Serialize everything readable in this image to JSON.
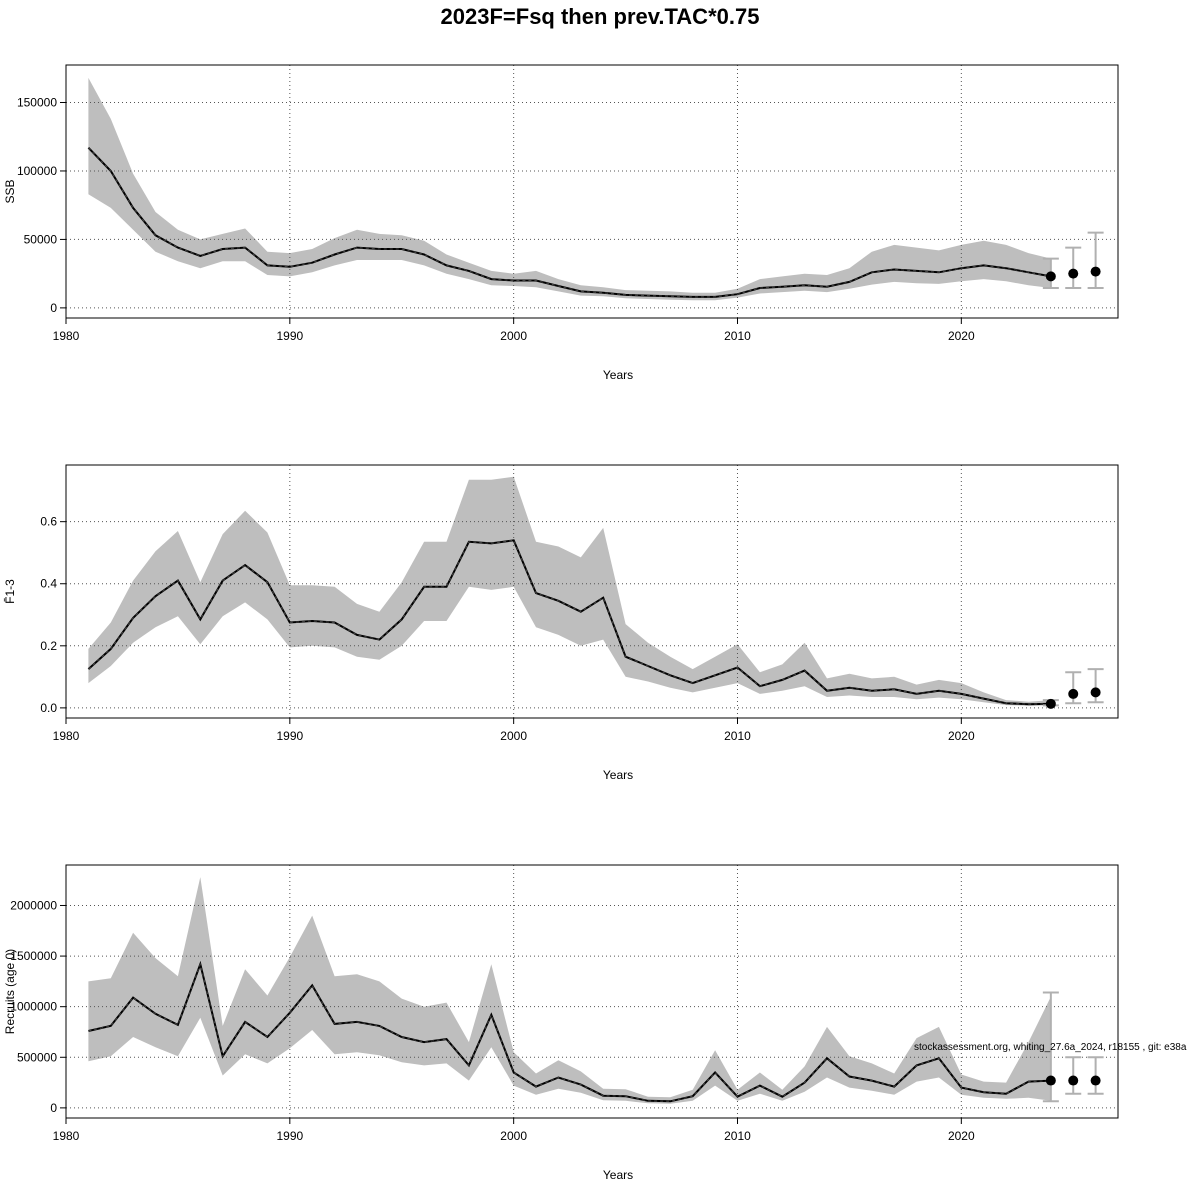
{
  "title": "2023F=Fsq then prev.TAC*0.75",
  "watermark": "stockassessment.org, whiting_27.6a_2024, r18155 , git: e38a",
  "colors": {
    "band": "#bebebe",
    "line": "#000000",
    "grid": "#555555",
    "errorbar": "#b0b0b0"
  },
  "chart_data": [
    {
      "type": "line",
      "name": "ssb-panel",
      "ylabel": "SSB",
      "xlabel": "Years",
      "xlim": [
        1980,
        2027
      ],
      "ylim": [
        0,
        170000
      ],
      "xticks": [
        1980,
        1990,
        2000,
        2010,
        2020
      ],
      "yticks": [
        0,
        50000,
        100000,
        150000
      ],
      "ytick_labels": [
        "0",
        "50000",
        "100000",
        "150000"
      ],
      "grid": true,
      "years": [
        1981,
        1982,
        1983,
        1984,
        1985,
        1986,
        1987,
        1988,
        1989,
        1990,
        1991,
        1992,
        1993,
        1994,
        1995,
        1996,
        1997,
        1998,
        1999,
        2000,
        2001,
        2002,
        2003,
        2004,
        2005,
        2006,
        2007,
        2008,
        2009,
        2010,
        2011,
        2012,
        2013,
        2014,
        2015,
        2016,
        2017,
        2018,
        2019,
        2020,
        2021,
        2022,
        2023,
        2024
      ],
      "estimate": [
        117000,
        100000,
        73000,
        53000,
        44000,
        38000,
        43000,
        44000,
        31000,
        30000,
        33000,
        39000,
        44000,
        43000,
        43000,
        39000,
        31000,
        27000,
        21000,
        20000,
        20000,
        16000,
        12000,
        11000,
        9500,
        9000,
        8500,
        8000,
        8000,
        10000,
        14500,
        15500,
        16500,
        15500,
        19000,
        26000,
        28000,
        27000,
        26000,
        29000,
        31000,
        29000,
        26000,
        23000
      ],
      "lower": [
        83000,
        73000,
        57000,
        41000,
        34000,
        29000,
        34000,
        34000,
        24000,
        23000,
        26000,
        31000,
        35000,
        35000,
        35000,
        31000,
        25000,
        21000,
        16500,
        16000,
        15000,
        12000,
        9000,
        8500,
        7000,
        6500,
        6000,
        5500,
        5500,
        7500,
        10500,
        11500,
        12500,
        11500,
        14000,
        17000,
        19000,
        18000,
        17500,
        19500,
        21000,
        19500,
        16500,
        14500
      ],
      "upper": [
        168000,
        138000,
        98000,
        70000,
        57000,
        50000,
        54000,
        58000,
        41000,
        40000,
        43000,
        51000,
        57000,
        54000,
        53000,
        49000,
        39000,
        33000,
        27000,
        25000,
        27000,
        21000,
        16500,
        15000,
        13000,
        12500,
        12000,
        11000,
        11000,
        14000,
        21000,
        23000,
        25000,
        24000,
        29000,
        41000,
        46000,
        44000,
        42000,
        46000,
        49000,
        46000,
        40000,
        36000
      ],
      "forecast_years": [
        2024,
        2025,
        2026
      ],
      "forecast": [
        23000,
        25000,
        26500
      ],
      "forecast_lower": [
        14500,
        14500,
        14500
      ],
      "forecast_upper": [
        36000,
        44000,
        55000
      ]
    },
    {
      "type": "line",
      "name": "fbar-panel",
      "ylabel": "F̄1-3",
      "xlabel": "Years",
      "xlim": [
        1980,
        2027
      ],
      "ylim": [
        0,
        0.75
      ],
      "xticks": [
        1980,
        1990,
        2000,
        2010,
        2020
      ],
      "yticks": [
        0,
        0.2,
        0.4,
        0.6
      ],
      "ytick_labels": [
        "0.0",
        "0.2",
        "0.4",
        "0.6"
      ],
      "grid": true,
      "years": [
        1981,
        1982,
        1983,
        1984,
        1985,
        1986,
        1987,
        1988,
        1989,
        1990,
        1991,
        1992,
        1993,
        1994,
        1995,
        1996,
        1997,
        1998,
        1999,
        2000,
        2001,
        2002,
        2003,
        2004,
        2005,
        2006,
        2007,
        2008,
        2009,
        2010,
        2011,
        2012,
        2013,
        2014,
        2015,
        2016,
        2017,
        2018,
        2019,
        2020,
        2021,
        2022,
        2023,
        2024
      ],
      "estimate": [
        0.125,
        0.19,
        0.29,
        0.36,
        0.41,
        0.285,
        0.41,
        0.46,
        0.405,
        0.275,
        0.28,
        0.275,
        0.235,
        0.22,
        0.285,
        0.39,
        0.39,
        0.535,
        0.53,
        0.54,
        0.37,
        0.345,
        0.31,
        0.355,
        0.165,
        0.135,
        0.105,
        0.08,
        0.105,
        0.13,
        0.07,
        0.09,
        0.12,
        0.055,
        0.065,
        0.055,
        0.06,
        0.045,
        0.055,
        0.045,
        0.03,
        0.015,
        0.012,
        0.013
      ],
      "lower": [
        0.08,
        0.135,
        0.21,
        0.26,
        0.295,
        0.205,
        0.295,
        0.34,
        0.285,
        0.195,
        0.2,
        0.195,
        0.165,
        0.155,
        0.2,
        0.28,
        0.28,
        0.39,
        0.38,
        0.39,
        0.26,
        0.235,
        0.2,
        0.22,
        0.1,
        0.085,
        0.065,
        0.05,
        0.065,
        0.08,
        0.045,
        0.055,
        0.07,
        0.035,
        0.04,
        0.035,
        0.035,
        0.028,
        0.033,
        0.028,
        0.018,
        0.009,
        0.007,
        0.008
      ],
      "upper": [
        0.19,
        0.275,
        0.41,
        0.505,
        0.57,
        0.405,
        0.56,
        0.635,
        0.565,
        0.395,
        0.395,
        0.39,
        0.335,
        0.31,
        0.405,
        0.535,
        0.535,
        0.735,
        0.735,
        0.745,
        0.535,
        0.52,
        0.485,
        0.58,
        0.27,
        0.21,
        0.165,
        0.125,
        0.165,
        0.205,
        0.115,
        0.14,
        0.21,
        0.095,
        0.11,
        0.095,
        0.1,
        0.075,
        0.09,
        0.08,
        0.05,
        0.025,
        0.02,
        0.025
      ],
      "forecast_years": [
        2024,
        2025,
        2026
      ],
      "forecast": [
        0.013,
        0.045,
        0.05
      ],
      "forecast_lower": [
        0.008,
        0.015,
        0.018
      ],
      "forecast_upper": [
        0.025,
        0.115,
        0.125
      ]
    },
    {
      "type": "line",
      "name": "recruits-panel",
      "ylabel": "Recruits (age 0)",
      "xlabel": "Years",
      "xlim": [
        1980,
        2027
      ],
      "ylim": [
        0,
        2300000
      ],
      "xticks": [
        1980,
        1990,
        2000,
        2010,
        2020
      ],
      "yticks": [
        0,
        500000,
        1000000,
        1500000,
        2000000
      ],
      "ytick_labels": [
        "0",
        "500000",
        "1000000",
        "1500000",
        "2000000"
      ],
      "grid": true,
      "years": [
        1981,
        1982,
        1983,
        1984,
        1985,
        1986,
        1987,
        1988,
        1989,
        1990,
        1991,
        1992,
        1993,
        1994,
        1995,
        1996,
        1997,
        1998,
        1999,
        2000,
        2001,
        2002,
        2003,
        2004,
        2005,
        2006,
        2007,
        2008,
        2009,
        2010,
        2011,
        2012,
        2013,
        2014,
        2015,
        2016,
        2017,
        2018,
        2019,
        2020,
        2021,
        2022,
        2023,
        2024
      ],
      "estimate": [
        760000,
        810000,
        1090000,
        930000,
        820000,
        1420000,
        510000,
        850000,
        700000,
        940000,
        1210000,
        830000,
        850000,
        810000,
        700000,
        650000,
        680000,
        420000,
        920000,
        350000,
        210000,
        300000,
        230000,
        120000,
        115000,
        70000,
        65000,
        115000,
        350000,
        110000,
        220000,
        110000,
        250000,
        490000,
        310000,
        270000,
        210000,
        420000,
        490000,
        200000,
        155000,
        140000,
        260000,
        270000
      ],
      "lower": [
        460000,
        510000,
        700000,
        600000,
        510000,
        890000,
        320000,
        530000,
        440000,
        590000,
        770000,
        530000,
        550000,
        520000,
        450000,
        420000,
        440000,
        270000,
        600000,
        220000,
        130000,
        190000,
        150000,
        75000,
        70000,
        45000,
        40000,
        70000,
        220000,
        70000,
        140000,
        70000,
        160000,
        300000,
        200000,
        170000,
        130000,
        260000,
        300000,
        130000,
        100000,
        90000,
        100000,
        70000
      ],
      "upper": [
        1250000,
        1280000,
        1730000,
        1480000,
        1300000,
        2280000,
        810000,
        1370000,
        1110000,
        1490000,
        1900000,
        1300000,
        1320000,
        1250000,
        1080000,
        1000000,
        1040000,
        650000,
        1420000,
        550000,
        340000,
        470000,
        360000,
        190000,
        185000,
        110000,
        105000,
        180000,
        570000,
        180000,
        350000,
        180000,
        410000,
        800000,
        510000,
        440000,
        340000,
        690000,
        800000,
        330000,
        260000,
        250000,
        650000,
        1100000
      ],
      "forecast_years": [
        2024,
        2025,
        2026
      ],
      "forecast": [
        270000,
        270000,
        270000
      ],
      "forecast_lower": [
        65000,
        140000,
        140000
      ],
      "forecast_upper": [
        1140000,
        500000,
        500000
      ]
    }
  ]
}
